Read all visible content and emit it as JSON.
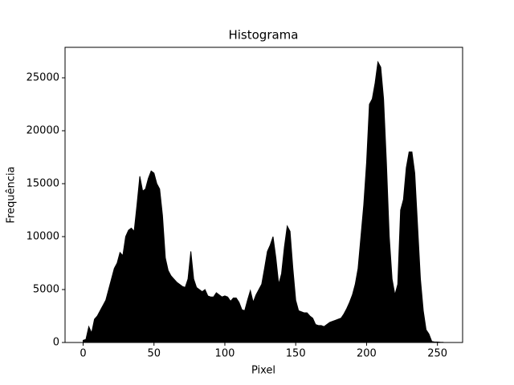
{
  "chart_data": {
    "type": "area",
    "title": "Histograma",
    "x_label": "Pixel",
    "y_label": "Frequência",
    "color": "#000000",
    "x": [
      0,
      2,
      4,
      6,
      8,
      10,
      12,
      14,
      16,
      18,
      20,
      22,
      24,
      26,
      28,
      30,
      32,
      34,
      36,
      38,
      40,
      42,
      44,
      46,
      48,
      50,
      52,
      54,
      56,
      58,
      60,
      62,
      64,
      66,
      68,
      70,
      72,
      74,
      76,
      78,
      80,
      82,
      84,
      86,
      88,
      90,
      92,
      94,
      96,
      98,
      100,
      102,
      104,
      106,
      108,
      110,
      112,
      114,
      116,
      118,
      120,
      122,
      124,
      126,
      128,
      130,
      132,
      134,
      136,
      138,
      140,
      142,
      144,
      146,
      148,
      150,
      152,
      154,
      156,
      158,
      160,
      162,
      164,
      166,
      168,
      170,
      172,
      174,
      176,
      178,
      180,
      182,
      184,
      186,
      188,
      190,
      192,
      194,
      196,
      198,
      200,
      202,
      204,
      206,
      208,
      210,
      212,
      214,
      216,
      218,
      220,
      222,
      224,
      226,
      228,
      230,
      232,
      234,
      236,
      238,
      240,
      242,
      244,
      246,
      248,
      250,
      252,
      254
    ],
    "values": [
      200,
      300,
      1500,
      900,
      2200,
      2500,
      3000,
      3500,
      4000,
      5000,
      6000,
      7000,
      7500,
      8500,
      8200,
      10000,
      10600,
      10800,
      10500,
      13000,
      15700,
      14300,
      14500,
      15500,
      16200,
      16000,
      15000,
      14500,
      12000,
      8000,
      6800,
      6300,
      6000,
      5700,
      5500,
      5300,
      5200,
      6000,
      8600,
      6000,
      5200,
      5000,
      4800,
      5000,
      4400,
      4300,
      4300,
      4700,
      4500,
      4300,
      4400,
      4300,
      3900,
      4200,
      4200,
      3800,
      3100,
      3000,
      4000,
      4900,
      3800,
      4500,
      5000,
      5500,
      7000,
      8600,
      9200,
      10000,
      8000,
      5500,
      6500,
      9000,
      11000,
      10500,
      7000,
      4000,
      3000,
      2900,
      2800,
      2800,
      2500,
      2300,
      1700,
      1600,
      1600,
      1500,
      1700,
      1900,
      2000,
      2100,
      2200,
      2300,
      2700,
      3200,
      3800,
      4500,
      5500,
      7000,
      10000,
      13000,
      17000,
      22500,
      23000,
      24500,
      26500,
      26000,
      23000,
      17000,
      10000,
      6000,
      4500,
      5500,
      12500,
      13500,
      16500,
      18000,
      18000,
      16000,
      11000,
      6000,
      3000,
      1200,
      800,
      100,
      50,
      50,
      30,
      20
    ],
    "xlim": [
      -12.75,
      267.75
    ],
    "ylim": [
      0,
      27880
    ],
    "xticks": [
      0,
      50,
      100,
      150,
      200,
      250
    ],
    "yticks": [
      0,
      5000,
      10000,
      15000,
      20000,
      25000
    ]
  }
}
